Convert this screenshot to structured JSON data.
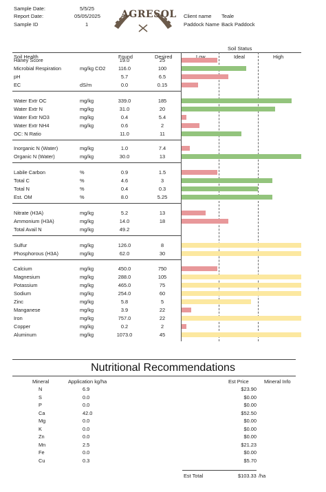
{
  "header": {
    "sample_date_label": "Sample Date:",
    "sample_date": "5/5/25",
    "report_date_label": "Report Date:",
    "report_date": "05/05/2025",
    "sample_id_label": "Sample ID",
    "sample_id": "1",
    "logo_text": "AGRESOL",
    "client_label": "Client name",
    "client": "Teale",
    "paddock_label": "Paddock Name",
    "paddock": "Back Paddock"
  },
  "table_header": {
    "soil_status": "Soil Status",
    "col_soil_health": "Soil Health",
    "col_found": "Found",
    "col_desired": "Desired",
    "col_low": "Low",
    "col_ideal": "Ideal",
    "col_high": "High"
  },
  "colors": {
    "red": "#e8989a",
    "green": "#93c47d",
    "yellow": "#fce8a0"
  },
  "rows": [
    {
      "name": "Haney Score",
      "unit": "",
      "found": "19.0",
      "desired": "25",
      "bar": 0.3,
      "color": "red"
    },
    {
      "name": "Microbial Respiration",
      "unit": "mg/kg CO2",
      "found": "116.0",
      "desired": "100",
      "bar": 0.54,
      "color": "green"
    },
    {
      "name": "pH",
      "unit": "",
      "found": "5.7",
      "desired": "6.5",
      "bar": 0.39,
      "color": "red"
    },
    {
      "name": "EC",
      "unit": "dS/m",
      "found": "0.0",
      "desired": "0.15",
      "bar": 0.14,
      "color": "red"
    },
    {
      "name": "Water Extr OC",
      "unit": "mg/kg",
      "found": "339.0",
      "desired": "185",
      "bar": 0.92,
      "color": "green"
    },
    {
      "name": "Water Extr N",
      "unit": "mg/kg",
      "found": "31.0",
      "desired": "20",
      "bar": 0.78,
      "color": "green"
    },
    {
      "name": "Water Extr NO3",
      "unit": "mg/kg",
      "found": "0.4",
      "desired": "5.4",
      "bar": 0.04,
      "color": "red"
    },
    {
      "name": "Water Extr NH4",
      "unit": "mg/kg",
      "found": "0.6",
      "desired": "2",
      "bar": 0.15,
      "color": "red"
    },
    {
      "name": "OC: N Ratio",
      "unit": "",
      "found": "11.0",
      "desired": "11",
      "bar": 0.5,
      "color": "green"
    },
    {
      "name": "Inorganic N (Water)",
      "unit": "mg/kg",
      "found": "1.0",
      "desired": "7.4",
      "bar": 0.07,
      "color": "red"
    },
    {
      "name": "Organic N (Water)",
      "unit": "mg/kg",
      "found": "30.0",
      "desired": "13",
      "bar": 1.0,
      "color": "green"
    },
    {
      "name": "Labile Carbon",
      "unit": "%",
      "found": "0.9",
      "desired": "1.5",
      "bar": 0.3,
      "color": "red"
    },
    {
      "name": "Total C",
      "unit": "%",
      "found": "4.6",
      "desired": "3",
      "bar": 0.76,
      "color": "green"
    },
    {
      "name": "Total N",
      "unit": "%",
      "found": "0.4",
      "desired": "0.3",
      "bar": 0.64,
      "color": "green"
    },
    {
      "name": "Est. OM",
      "unit": "%",
      "found": "8.0",
      "desired": "5.25",
      "bar": 0.76,
      "color": "green"
    },
    {
      "name": "Nitrate (H3A)",
      "unit": "mg/kg",
      "found": "5.2",
      "desired": "13",
      "bar": 0.2,
      "color": "red"
    },
    {
      "name": "Ammonium (H3A)",
      "unit": "mg/kg",
      "found": "14.0",
      "desired": "18",
      "bar": 0.39,
      "color": "red"
    },
    {
      "name": "Total Avail N",
      "unit": "mg/kg",
      "found": "49.2",
      "desired": "",
      "bar": 0,
      "color": "red"
    },
    {
      "name": "Sulfur",
      "unit": "mg/kg",
      "found": "126.0",
      "desired": "8",
      "bar": 1.0,
      "color": "yellow"
    },
    {
      "name": "Phosphorous (H3A)",
      "unit": "mg/kg",
      "found": "62.0",
      "desired": "30",
      "bar": 1.0,
      "color": "yellow"
    },
    {
      "name": "Calcium",
      "unit": "mg/kg",
      "found": "450.0",
      "desired": "750",
      "bar": 0.3,
      "color": "red"
    },
    {
      "name": "Magnesium",
      "unit": "mg/kg",
      "found": "288.0",
      "desired": "105",
      "bar": 1.0,
      "color": "yellow"
    },
    {
      "name": "Potassium",
      "unit": "mg/kg",
      "found": "465.0",
      "desired": "75",
      "bar": 1.0,
      "color": "yellow"
    },
    {
      "name": "Sodium",
      "unit": "mg/kg",
      "found": "254.0",
      "desired": "60",
      "bar": 1.0,
      "color": "yellow"
    },
    {
      "name": "Zinc",
      "unit": "mg/kg",
      "found": "5.8",
      "desired": "5",
      "bar": 0.58,
      "color": "yellow"
    },
    {
      "name": "Manganese",
      "unit": "mg/kg",
      "found": "3.9",
      "desired": "22",
      "bar": 0.08,
      "color": "red"
    },
    {
      "name": "Iron",
      "unit": "mg/kg",
      "found": "757.0",
      "desired": "22",
      "bar": 1.0,
      "color": "yellow"
    },
    {
      "name": "Copper",
      "unit": "mg/kg",
      "found": "0.2",
      "desired": "2",
      "bar": 0.04,
      "color": "red"
    },
    {
      "name": "Aluminum",
      "unit": "mg/kg",
      "found": "1073.0",
      "desired": "45",
      "bar": 1.0,
      "color": "yellow"
    }
  ],
  "recommendations": {
    "title": "Nutritional Recommendations",
    "col_mineral": "Mineral",
    "col_application": "Application kg/ha",
    "col_price": "Est Price",
    "col_info": "Mineral Info",
    "items": [
      {
        "mineral": "N",
        "application": "6.9",
        "price": "$23.90"
      },
      {
        "mineral": "S",
        "application": "0.0",
        "price": "$0.00"
      },
      {
        "mineral": "P",
        "application": "0.0",
        "price": "$0.00"
      },
      {
        "mineral": "Ca",
        "application": "42.0",
        "price": "$52.50"
      },
      {
        "mineral": "Mg",
        "application": "0.0",
        "price": "$0.00"
      },
      {
        "mineral": "K",
        "application": "0.0",
        "price": "$0.00"
      },
      {
        "mineral": "Zn",
        "application": "0.0",
        "price": "$0.00"
      },
      {
        "mineral": "Mn",
        "application": "2.5",
        "price": "$21.23"
      },
      {
        "mineral": "Fe",
        "application": "0.0",
        "price": "$0.00"
      },
      {
        "mineral": "Cu",
        "application": "0.3",
        "price": "$5.70"
      }
    ],
    "total_label": "Est Total",
    "total": "$103.33",
    "total_unit": "/ha"
  }
}
